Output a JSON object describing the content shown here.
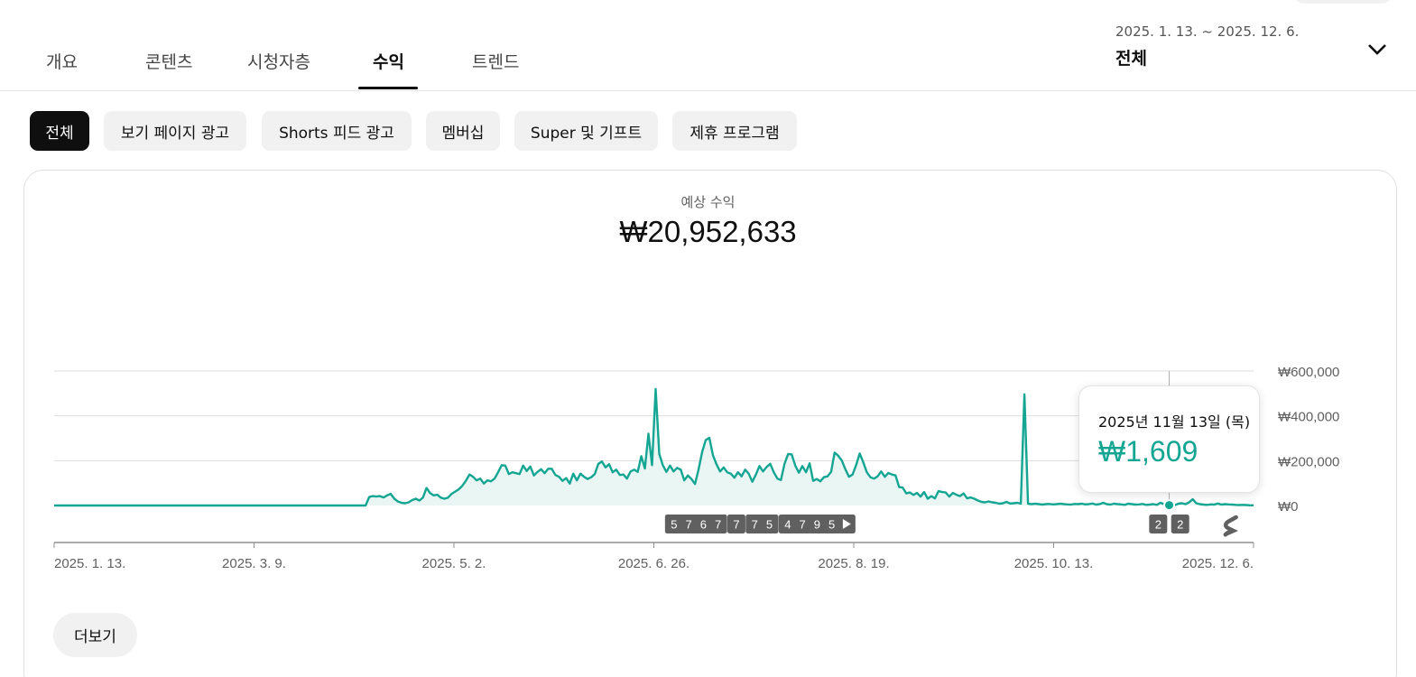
{
  "tabs": [
    {
      "label": "개요",
      "active": false
    },
    {
      "label": "콘텐츠",
      "active": false
    },
    {
      "label": "시청자층",
      "active": false
    },
    {
      "label": "수익",
      "active": true
    },
    {
      "label": "트렌드",
      "active": false
    }
  ],
  "date_picker": {
    "range": "2025. 1. 13. ~ 2025. 12. 6.",
    "label": "전체",
    "icon": "chevron-down-icon"
  },
  "filter_chips": [
    {
      "label": "전체",
      "selected": true
    },
    {
      "label": "보기 페이지 광고",
      "selected": false
    },
    {
      "label": "Shorts 피드 광고",
      "selected": false
    },
    {
      "label": "멤버십",
      "selected": false
    },
    {
      "label": "Super 및 기프트",
      "selected": false
    },
    {
      "label": "제휴 프로그램",
      "selected": false
    }
  ],
  "metric": {
    "label": "예상 수익",
    "value": "₩20,952,633"
  },
  "tooltip": {
    "date": "2025년 11월 13일 (목)",
    "value": "₩1,609"
  },
  "more_button": {
    "label": "더보기"
  },
  "colors": {
    "accent": "#14a693",
    "area_fill": "#e9f6f4",
    "marker_bg": "#606060",
    "chip_bg": "#f1f1f1",
    "chip_selected_bg": "#0f0f0f"
  },
  "chart_data": {
    "type": "area",
    "title": "예상 수익",
    "x_start": "2025-01-13",
    "x_end": "2025-12-06",
    "x_tick_labels": [
      "2025. 1. 13.",
      "2025. 3. 9.",
      "2025. 5. 2.",
      "2025. 6. 26.",
      "2025. 8. 19.",
      "2025. 10. 13.",
      "2025. 12. 6."
    ],
    "y_tick_labels": [
      "₩0",
      "₩200,000",
      "₩400,000",
      "₩600,000"
    ],
    "ylim": [
      0,
      600000
    ],
    "grid": true,
    "series": [
      {
        "values_krw": [
          0,
          0,
          0,
          0,
          0,
          0,
          0,
          0,
          0,
          0,
          0,
          0,
          0,
          0,
          0,
          0,
          0,
          0,
          0,
          0,
          0,
          0,
          0,
          0,
          0,
          0,
          0,
          0,
          0,
          0,
          0,
          0,
          0,
          0,
          0,
          0,
          0,
          0,
          0,
          0,
          0,
          0,
          0,
          0,
          0,
          0,
          0,
          0,
          0,
          0,
          0,
          0,
          0,
          0,
          0,
          0,
          0,
          0,
          0,
          0,
          0,
          0,
          0,
          0,
          0,
          0,
          0,
          0,
          0,
          0,
          0,
          0,
          0,
          0,
          0,
          0,
          0,
          0,
          0,
          0,
          0,
          0,
          0,
          0,
          0,
          0,
          0,
          0,
          38000,
          42000,
          40000,
          42000,
          36000,
          45000,
          52000,
          30000,
          18000,
          12000,
          10000,
          14000,
          24000,
          30000,
          22000,
          35000,
          78000,
          55000,
          45000,
          48000,
          35000,
          30000,
          35000,
          52000,
          62000,
          72000,
          88000,
          110000,
          138000,
          128000,
          112000,
          120000,
          98000,
          112000,
          108000,
          120000,
          148000,
          180000,
          178000,
          140000,
          148000,
          144000,
          140000,
          178000,
          154000,
          174000,
          134000,
          150000,
          162000,
          144000,
          164000,
          164000,
          136000,
          128000,
          110000,
          122000,
          98000,
          142000,
          112000,
          142000,
          128000,
          118000,
          126000,
          140000,
          186000,
          196000,
          170000,
          184000,
          148000,
          160000,
          136000,
          138000,
          120000,
          152000,
          160000,
          150000,
          220000,
          165000,
          320000,
          180000,
          520000,
          230000,
          180000,
          150000,
          178000,
          152000,
          168000,
          160000,
          112000,
          134000,
          118000,
          96000,
          162000,
          240000,
          292000,
          302000,
          224000,
          184000,
          152000,
          170000,
          148000,
          142000,
          124000,
          148000,
          130000,
          160000,
          142000,
          106000,
          138000,
          176000,
          152000,
          172000,
          186000,
          148000,
          120000,
          114000,
          186000,
          230000,
          228000,
          178000,
          146000,
          176000,
          148000,
          188000,
          110000,
          118000,
          108000,
          126000,
          130000,
          150000,
          236000,
          222000,
          200000,
          162000,
          128000,
          138000,
          180000,
          232000,
          192000,
          148000,
          126000,
          120000,
          130000,
          152000,
          128000,
          145000,
          138000,
          134000,
          82000,
          80000,
          54000,
          58000,
          47000,
          56000,
          40000,
          60000,
          30000,
          42000,
          32000,
          64000,
          60000,
          58000,
          40000,
          56000,
          48000,
          42000,
          54000,
          32000,
          36000,
          30000,
          22000,
          16000,
          14000,
          18000,
          14000,
          12000,
          8000,
          10000,
          16000,
          9000,
          10000,
          12000,
          8000,
          496000,
          8000,
          6000,
          8000,
          6000,
          4000,
          6000,
          7000,
          5000,
          6000,
          8000,
          6000,
          5000,
          4000,
          7000,
          6000,
          8000,
          5000,
          6000,
          9000,
          4000,
          6000,
          12000,
          6000,
          4000,
          8000,
          6000,
          5000,
          3000,
          8000,
          6000,
          4000,
          5000,
          7000,
          3000,
          4000,
          6000,
          3000,
          12000,
          6000,
          9000,
          14000,
          1609,
          8000,
          10000,
          6000,
          14000,
          28000,
          10000,
          6000,
          4000,
          3000,
          5000,
          4000,
          9000,
          4000,
          6000,
          5000,
          4000,
          3000,
          2000,
          3000,
          2000,
          1000,
          1000
        ]
      }
    ],
    "hover_date": "2025-11-13",
    "video_markers": [
      {
        "date": "2025-07-01",
        "label": "5"
      },
      {
        "date": "2025-07-05",
        "label": "7"
      },
      {
        "date": "2025-07-09",
        "label": "6"
      },
      {
        "date": "2025-07-13",
        "label": "7"
      },
      {
        "date": "2025-07-18",
        "label": "7"
      },
      {
        "date": "2025-07-23",
        "label": "7"
      },
      {
        "date": "2025-07-27",
        "label": "5"
      },
      {
        "date": "2025-08-01",
        "label": "4"
      },
      {
        "date": "2025-08-05",
        "label": "7"
      },
      {
        "date": "2025-08-09",
        "label": "9"
      },
      {
        "date": "2025-08-13",
        "label": "5"
      },
      {
        "date": "2025-08-17",
        "label": "play-icon"
      },
      {
        "date": "2025-11-10",
        "label": "2"
      },
      {
        "date": "2025-11-16",
        "label": "2"
      },
      {
        "date": "2025-11-30",
        "label": "shorts-icon"
      }
    ]
  }
}
